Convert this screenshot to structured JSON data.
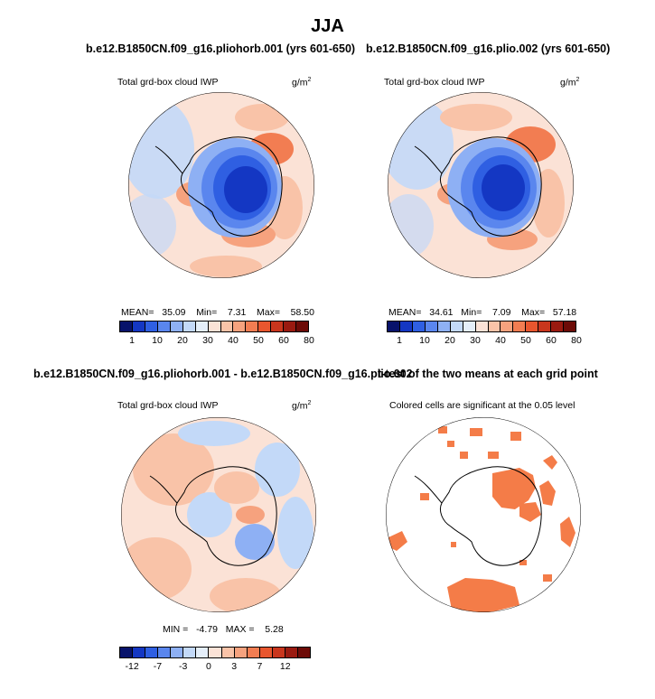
{
  "title": "JJA",
  "panels": [
    {
      "title": "b.e12.B1850CN.f09_g16.pliohorb.001 (yrs 601-650)",
      "subtitle": "Total grd-box cloud IWP",
      "units": "g/m",
      "units_sup": "2",
      "stats": {
        "mean_label": "MEAN=",
        "mean": "35.09",
        "min_label": "Min=",
        "min": "7.31",
        "max_label": "Max=",
        "max": "58.50"
      }
    },
    {
      "title": "b.e12.B1850CN.f09_g16.plio.002 (yrs 601-650)",
      "subtitle": "Total grd-box cloud IWP",
      "units": "g/m",
      "units_sup": "2",
      "stats": {
        "mean_label": "MEAN=",
        "mean": "34.61",
        "min_label": "Min=",
        "min": "7.09",
        "max_label": "Max=",
        "max": "57.18"
      }
    },
    {
      "title": "b.e12.B1850CN.f09_g16.pliohorb.001 - b.e12.B1850CN.f09_g16.plio.002",
      "subtitle": "Total grd-box cloud IWP",
      "units": "g/m",
      "units_sup": "2",
      "stats": {
        "min_label": "MIN =",
        "min": "-4.79",
        "max_label": "MAX =",
        "max": "5.28"
      }
    },
    {
      "title": "t-test of the two means at each grid point",
      "subtitle": "Colored cells are significant at the 0.05 level"
    }
  ],
  "colorbars": {
    "abs": {
      "labels": [
        "1",
        "10",
        "20",
        "30",
        "40",
        "50",
        "60",
        "80"
      ],
      "colors": [
        "#08136b",
        "#1437c3",
        "#2f5fe2",
        "#5a86ee",
        "#8eb0f4",
        "#c3d9f8",
        "#e4eef9",
        "#fbe2d6",
        "#f9c3a8",
        "#f6a27e",
        "#f27d52",
        "#e8562e",
        "#c9361d",
        "#9a1a10",
        "#6d0b07"
      ]
    },
    "diff": {
      "labels": [
        "-12",
        "-7",
        "-3",
        "0",
        "3",
        "7",
        "12"
      ],
      "colors": [
        "#08136b",
        "#1437c3",
        "#2f5fe2",
        "#5a86ee",
        "#8eb0f4",
        "#c3d9f8",
        "#e4eef9",
        "#fbe2d6",
        "#f9c3a8",
        "#f6a27e",
        "#f27d52",
        "#e8562e",
        "#c9361d",
        "#9a1a10",
        "#6d0b07"
      ]
    }
  },
  "chart_data": [
    {
      "type": "heatmap",
      "title": "b.e12.B1850CN.f09_g16.pliohorb.001 (yrs 601-650)",
      "variable": "Total grd-box cloud IWP",
      "units": "g/m2",
      "season": "JJA",
      "projection": "south polar stereographic",
      "mean": 35.09,
      "min": 7.31,
      "max": 58.5,
      "colorbar_levels": [
        1,
        10,
        20,
        30,
        40,
        50,
        60,
        80
      ]
    },
    {
      "type": "heatmap",
      "title": "b.e12.B1850CN.f09_g16.plio.002 (yrs 601-650)",
      "variable": "Total grd-box cloud IWP",
      "units": "g/m2",
      "season": "JJA",
      "projection": "south polar stereographic",
      "mean": 34.61,
      "min": 7.09,
      "max": 57.18,
      "colorbar_levels": [
        1,
        10,
        20,
        30,
        40,
        50,
        60,
        80
      ]
    },
    {
      "type": "heatmap",
      "title": "b.e12.B1850CN.f09_g16.pliohorb.001 - b.e12.B1850CN.f09_g16.plio.002",
      "variable": "Total grd-box cloud IWP difference",
      "units": "g/m2",
      "min": -4.79,
      "max": 5.28,
      "colorbar_levels": [
        -12,
        -7,
        -3,
        0,
        3,
        7,
        12
      ]
    },
    {
      "type": "heatmap",
      "title": "t-test of the two means at each grid point",
      "significance_level": 0.05,
      "description": "Colored cells are significant at the 0.05 level",
      "significant_color": "#f47c48"
    }
  ]
}
